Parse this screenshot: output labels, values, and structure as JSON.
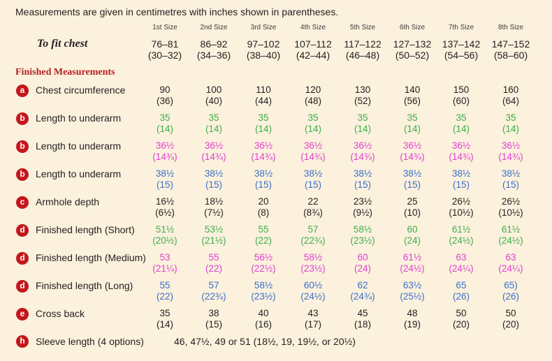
{
  "intro": "Measurements are given in centimetres with inches shown in parentheses.",
  "sizes": [
    "1st Size",
    "2nd Size",
    "3rd Size",
    "4th Size",
    "5th Size",
    "6th Size",
    "7th Size",
    "8th Size"
  ],
  "to_fit": {
    "label": "To fit chest",
    "values": [
      [
        "76–81",
        "(30–32)"
      ],
      [
        "86–92",
        "(34–36)"
      ],
      [
        "97–102",
        "(38–40)"
      ],
      [
        "107–112",
        "(42–44)"
      ],
      [
        "117–122",
        "(46–48)"
      ],
      [
        "127–132",
        "(50–52)"
      ],
      [
        "137–142",
        "(54–56)"
      ],
      [
        "147–152",
        "(58–60)"
      ]
    ]
  },
  "section_title": "Finished Measurements",
  "colors": {
    "dark": "#231f20",
    "green": "#3fae49",
    "magenta": "#e03fd0",
    "blue": "#3c6fc8",
    "badge": "#c4161c"
  },
  "rows": [
    {
      "badge": "a",
      "label": "Chest circumference",
      "color": "dark",
      "values": [
        [
          "90",
          "(36)"
        ],
        [
          "100",
          "(40)"
        ],
        [
          "110",
          "(44)"
        ],
        [
          "120",
          "(48)"
        ],
        [
          "130",
          "(52)"
        ],
        [
          "140",
          "(56)"
        ],
        [
          "150",
          "(60)"
        ],
        [
          "160",
          "(64)"
        ]
      ]
    },
    {
      "badge": "b",
      "label": "Length to underarm",
      "color": "green",
      "values": [
        [
          "35",
          "(14)"
        ],
        [
          "35",
          "(14)"
        ],
        [
          "35",
          "(14)"
        ],
        [
          "35",
          "(14)"
        ],
        [
          "35",
          "(14)"
        ],
        [
          "35",
          "(14)"
        ],
        [
          "35",
          "(14)"
        ],
        [
          "35",
          "(14)"
        ]
      ]
    },
    {
      "badge": "b",
      "label": "Length to underarm",
      "color": "magenta",
      "values": [
        [
          "36½",
          "(14¾)"
        ],
        [
          "36½",
          "(14¾)"
        ],
        [
          "36½",
          "(14¾)"
        ],
        [
          "36½",
          "(14¾)"
        ],
        [
          "36½",
          "(14¾)"
        ],
        [
          "36½",
          "(14¾)"
        ],
        [
          "36½",
          "(14¾)"
        ],
        [
          "36½",
          "(14¾)"
        ]
      ]
    },
    {
      "badge": "b",
      "label": "Length to underarm",
      "color": "blue",
      "values": [
        [
          "38½",
          "(15)"
        ],
        [
          "38½",
          "(15)"
        ],
        [
          "38½",
          "(15)"
        ],
        [
          "38½",
          "(15)"
        ],
        [
          "38½",
          "(15)"
        ],
        [
          "38½",
          "(15)"
        ],
        [
          "38½",
          "(15)"
        ],
        [
          "38½",
          "(15)"
        ]
      ]
    },
    {
      "badge": "c",
      "label": "Armhole depth",
      "color": "dark",
      "values": [
        [
          "16½",
          "(6½)"
        ],
        [
          "18½",
          "(7½)"
        ],
        [
          "20",
          "(8)"
        ],
        [
          "22",
          "(8¾)"
        ],
        [
          "23½",
          "(9½)"
        ],
        [
          "25",
          "(10)"
        ],
        [
          "26½",
          "(10½)"
        ],
        [
          "26½",
          "(10½)"
        ]
      ]
    },
    {
      "badge": "d",
      "label": "Finished length (Short)",
      "color": "green",
      "values": [
        [
          "51½",
          "(20½)"
        ],
        [
          "53½",
          "(21½)"
        ],
        [
          "55",
          "(22)"
        ],
        [
          "57",
          "(22¾)"
        ],
        [
          "58½",
          "(23½)"
        ],
        [
          "60",
          "(24)"
        ],
        [
          "61½",
          "(24½)"
        ],
        [
          "61½",
          "(24½)"
        ]
      ]
    },
    {
      "badge": "d",
      "label": "Finished length (Medium)",
      "color": "magenta",
      "values": [
        [
          "53",
          "(21¼)"
        ],
        [
          "55",
          "(22)"
        ],
        [
          "56½",
          "(22½)"
        ],
        [
          "58½",
          "(23½)"
        ],
        [
          "60",
          "(24)"
        ],
        [
          "61½",
          "(24½)"
        ],
        [
          "63",
          "(24¼)"
        ],
        [
          "63",
          "(24¼)"
        ]
      ]
    },
    {
      "badge": "d",
      "label": "Finished length (Long)",
      "color": "blue",
      "values": [
        [
          "55",
          "(22)"
        ],
        [
          "57",
          "(22¾)"
        ],
        [
          "58½",
          "(23½)"
        ],
        [
          "60½",
          "(24½)"
        ],
        [
          "62",
          "(24¾)"
        ],
        [
          "63½",
          "(25½)"
        ],
        [
          "65",
          "(26)"
        ],
        [
          "65)",
          "(26)"
        ]
      ]
    },
    {
      "badge": "e",
      "label": "Cross back",
      "color": "dark",
      "values": [
        [
          "35",
          "(14)"
        ],
        [
          "38",
          "(15)"
        ],
        [
          "40",
          "(16)"
        ],
        [
          "43",
          "(17)"
        ],
        [
          "45",
          "(18)"
        ],
        [
          "48",
          "(19)"
        ],
        [
          "50",
          "(20)"
        ],
        [
          "50",
          "(20)"
        ]
      ]
    }
  ],
  "sleeve": {
    "badge": "h",
    "label": "Sleeve length (4 options)",
    "values": "46, 47½, 49 or 51  (18½, 19, 19½, or 20½)"
  }
}
